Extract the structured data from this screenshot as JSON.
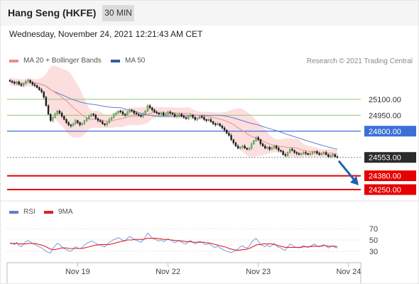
{
  "header": {
    "title": "Hang Seng (HKFE)",
    "timeframe": "30 MIN",
    "timestamp": "Wednesday, November 24, 2021 12:21:43 AM CET",
    "copyright": "Research © 2021 Trading Central"
  },
  "colors": {
    "bull": "#3c8a3c",
    "bear": "#111111",
    "bollinger_fill": "#fddede",
    "ma20": "#e89090",
    "ma50": "#5b7fd0",
    "resistance": "#90c870",
    "pivot": "#3b6fd8",
    "support": "#e60000",
    "last_price": "#2b2b2b",
    "arrow": "#1f5fb0",
    "rsi": "#6a8fe0",
    "rsi_ma": "#e02020"
  },
  "chart_data": [
    {
      "type": "candlestick",
      "title": "Hang Seng (HKFE)",
      "timeframe": "30 MIN",
      "legend": [
        "MA 20 + Bollinger Bands",
        "MA 50"
      ],
      "ylim": [
        24150,
        25400
      ],
      "x_ticks": [
        {
          "label": "Nov 19",
          "index": 30
        },
        {
          "label": "Nov 22",
          "index": 70
        },
        {
          "label": "Nov 23",
          "index": 110
        },
        {
          "label": "Nov 24",
          "index": 150
        }
      ],
      "close": [
        25270,
        25260,
        25250,
        25265,
        25240,
        25230,
        25250,
        25270,
        25280,
        25260,
        25240,
        25230,
        25210,
        25190,
        25170,
        25120,
        25040,
        24960,
        24900,
        24930,
        24960,
        24990,
        24970,
        24940,
        24910,
        24880,
        24860,
        24850,
        24870,
        24900,
        24880,
        24860,
        24870,
        24900,
        24920,
        24940,
        24960,
        24950,
        24920,
        24900,
        24890,
        24870,
        24860,
        24880,
        24910,
        24930,
        24960,
        24970,
        24990,
        24980,
        24960,
        24950,
        24980,
        25000,
        24990,
        24970,
        24960,
        24950,
        24940,
        24960,
        24990,
        25040,
        25020,
        25000,
        24980,
        24970,
        24960,
        24970,
        24950,
        24960,
        24980,
        24970,
        24960,
        24940,
        24950,
        24960,
        24940,
        24930,
        24920,
        24940,
        24950,
        24930,
        24910,
        24920,
        24940,
        24930,
        24910,
        24900,
        24910,
        24890,
        24870,
        24860,
        24870,
        24850,
        24830,
        24810,
        24780,
        24760,
        24720,
        24690,
        24660,
        24640,
        24650,
        24660,
        24640,
        24630,
        24640,
        24680,
        24710,
        24740,
        24720,
        24680,
        24660,
        24640,
        24650,
        24630,
        24640,
        24660,
        24640,
        24620,
        24610,
        24580,
        24570,
        24600,
        24630,
        24620,
        24600,
        24590,
        24580,
        24590,
        24600,
        24590,
        24580,
        24590,
        24600,
        24610,
        24590,
        24580,
        24590,
        24600,
        24580,
        24560,
        24570,
        24580,
        24560,
        24553
      ],
      "annotated_price": 24553,
      "levels": [
        {
          "label": "25100.00",
          "value": 25100,
          "kind": "resistance"
        },
        {
          "label": "24950.00",
          "value": 24950,
          "kind": "resistance"
        },
        {
          "label": "24800.00",
          "value": 24800,
          "kind": "pivot"
        },
        {
          "label": "24553.00",
          "value": 24553,
          "kind": "last"
        },
        {
          "label": "24380.00",
          "value": 24380,
          "kind": "support"
        },
        {
          "label": "24250.00",
          "value": 24250,
          "kind": "support"
        }
      ],
      "forecast_arrow": {
        "from": 24560,
        "to": 24290
      }
    },
    {
      "type": "line",
      "legend": [
        "RSI",
        "9MA"
      ],
      "ylim": [
        10,
        90
      ],
      "ticks": [
        70,
        50,
        30
      ],
      "tick_labels": [
        "70",
        "50",
        "30"
      ],
      "rsi": [
        45,
        44,
        42,
        46,
        40,
        38,
        43,
        47,
        49,
        47,
        44,
        42,
        40,
        38,
        36,
        33,
        30,
        28,
        27,
        35,
        40,
        44,
        42,
        38,
        35,
        33,
        31,
        30,
        34,
        38,
        36,
        35,
        37,
        41,
        44,
        46,
        48,
        47,
        44,
        42,
        41,
        39,
        38,
        42,
        46,
        48,
        51,
        52,
        54,
        52,
        49,
        48,
        53,
        56,
        54,
        51,
        49,
        48,
        46,
        50,
        55,
        62,
        58,
        54,
        51,
        50,
        48,
        50,
        47,
        49,
        52,
        50,
        48,
        45,
        47,
        49,
        46,
        44,
        43,
        47,
        49,
        46,
        43,
        45,
        48,
        46,
        43,
        42,
        44,
        41,
        38,
        37,
        39,
        36,
        34,
        32,
        30,
        29,
        28,
        30,
        32,
        34,
        38,
        40,
        37,
        36,
        39,
        46,
        50,
        53,
        48,
        42,
        40,
        38,
        41,
        38,
        40,
        44,
        40,
        37,
        36,
        33,
        32,
        38,
        43,
        41,
        38,
        37,
        36,
        38,
        40,
        38,
        37,
        39,
        41,
        43,
        39,
        38,
        40,
        42,
        39,
        36,
        38,
        40,
        37,
        36
      ],
      "rsi_ma": [
        44,
        44,
        44,
        44,
        43,
        43,
        43,
        43,
        44,
        44,
        44,
        44,
        43,
        42,
        41,
        40,
        38,
        36,
        34,
        33,
        33,
        34,
        35,
        36,
        36,
        36,
        35,
        35,
        35,
        35,
        35,
        35,
        35,
        36,
        37,
        38,
        39,
        40,
        41,
        41,
        42,
        42,
        42,
        42,
        42,
        43,
        44,
        45,
        46,
        47,
        48,
        49,
        50,
        50,
        50,
        51,
        51,
        51,
        51,
        51,
        52,
        53,
        53,
        53,
        53,
        53,
        52,
        52,
        51,
        51,
        51,
        50,
        50,
        49,
        49,
        49,
        48,
        48,
        47,
        47,
        47,
        46,
        46,
        46,
        46,
        46,
        46,
        45,
        45,
        44,
        43,
        42,
        41,
        40,
        39,
        38,
        37,
        35,
        34,
        33,
        32,
        32,
        32,
        33,
        33,
        34,
        35,
        37,
        39,
        41,
        42,
        42,
        43,
        43,
        43,
        43,
        43,
        42,
        41,
        40,
        39,
        38,
        37,
        37,
        37,
        37,
        37,
        37,
        37,
        37,
        38,
        38,
        38,
        38,
        39,
        39,
        39,
        39,
        39,
        40,
        40,
        39,
        39,
        39,
        39,
        38
      ]
    }
  ]
}
